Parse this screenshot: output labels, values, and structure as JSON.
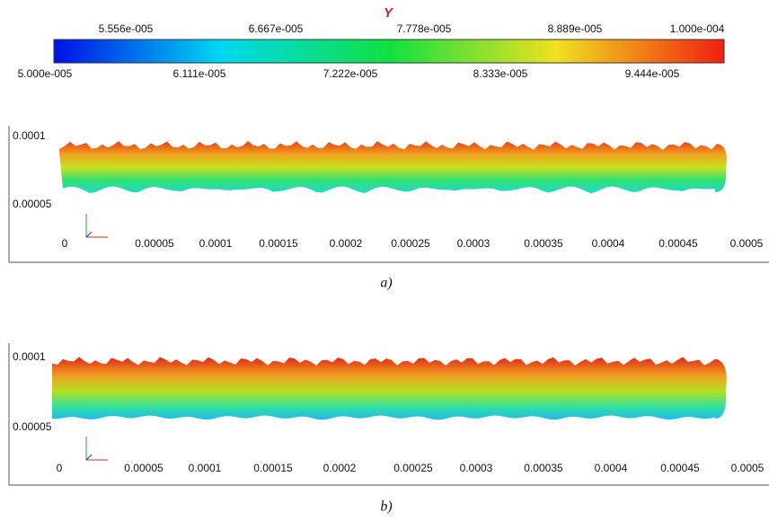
{
  "colorbar": {
    "title": "Y",
    "top_labels": [
      "5.556e-005",
      "6.667e-005",
      "7.778e-005",
      "8.889e-005",
      "1.000e-004"
    ],
    "bottom_labels": [
      "5.000e-005",
      "6.111e-005",
      "7.222e-005",
      "8.333e-005",
      "9.444e-005"
    ]
  },
  "panels": [
    {
      "caption": "a)",
      "y_labels": [
        "0.0001",
        "0.00005"
      ],
      "x_labels": [
        "0",
        "0.00005",
        "0.0001",
        "0.00015",
        "0.0002",
        "0.00025",
        "0.0003",
        "0.00035",
        "0.0004",
        "0.00045",
        "0.0005"
      ]
    },
    {
      "caption": "b)",
      "y_labels": [
        "0.0001",
        "0.00005"
      ],
      "x_labels": [
        "0",
        "0.00005",
        "0.0001",
        "0.00015",
        "0.0002",
        "0.00025",
        "0.0003",
        "0.00035",
        "0.0004",
        "0.00045",
        "0.0005"
      ]
    }
  ]
}
